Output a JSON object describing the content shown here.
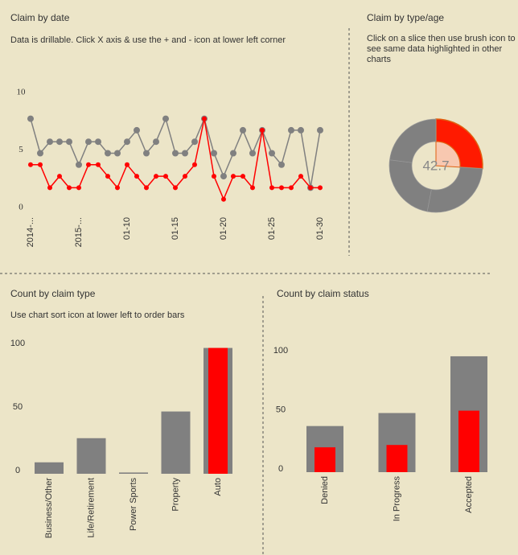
{
  "chart_data": [
    {
      "type": "line",
      "title": "Claim by date",
      "subtitle": "Data is drillable. Click X axis & use the + and - icon at lower left corner",
      "categories": [
        "2014-...",
        null,
        null,
        null,
        null,
        "2015-...",
        null,
        null,
        null,
        null,
        "01-10",
        null,
        null,
        null,
        null,
        "01-15",
        null,
        null,
        null,
        null,
        "01-20",
        null,
        null,
        null,
        null,
        "01-25",
        null,
        null,
        null,
        null,
        "01-30"
      ],
      "series": [
        {
          "color": "#808080",
          "values": [
            8,
            5,
            6,
            6,
            6,
            4,
            6,
            6,
            5,
            5,
            6,
            7,
            5,
            6,
            8,
            5,
            5,
            6,
            8,
            5,
            3,
            5,
            7,
            5,
            7,
            5,
            4,
            7,
            7,
            2,
            7
          ]
        },
        {
          "color": "#ff0000",
          "values": [
            4,
            4,
            2,
            3,
            2,
            2,
            4,
            4,
            3,
            2,
            4,
            3,
            2,
            3,
            3,
            2,
            3,
            4,
            8,
            3,
            1,
            3,
            3,
            2,
            7,
            2,
            2,
            2,
            3,
            2,
            2
          ]
        }
      ],
      "ylim": [
        0,
        10
      ],
      "yticks": [
        0,
        5,
        10
      ]
    },
    {
      "type": "donut",
      "title": "Claim by type/age",
      "subtitle": "Click on a slice then use brush icon to see same data highlighted in other charts",
      "values": [
        26,
        27,
        24,
        23
      ],
      "colors": [
        "#ff1a00",
        "#808080",
        "#808080",
        "#808080"
      ],
      "center_value": 42.7
    },
    {
      "type": "bar",
      "title": "Count by claim type",
      "subtitle": "Use chart sort icon at lower left to order bars",
      "categories": [
        "Business/Other",
        "Life/Retirement",
        "Power Sports",
        "Property",
        "Auto"
      ],
      "series": [
        {
          "color": "#808080",
          "values": [
            9,
            28,
            1,
            49,
            99
          ]
        },
        {
          "color": "#ff0000",
          "values": [
            0,
            0,
            0,
            0,
            99
          ]
        }
      ],
      "ylim": [
        0,
        100
      ],
      "yticks": [
        0,
        50,
        100
      ]
    },
    {
      "type": "bar",
      "title": "Count by claim status",
      "categories": [
        "Denied",
        "In Progress",
        "Accepted"
      ],
      "series": [
        {
          "color": "#808080",
          "values": [
            39,
            50,
            98
          ]
        },
        {
          "color": "#ff0000",
          "values": [
            21,
            23,
            52
          ]
        }
      ],
      "ylim": [
        0,
        100
      ],
      "yticks": [
        0,
        50,
        100
      ]
    }
  ]
}
